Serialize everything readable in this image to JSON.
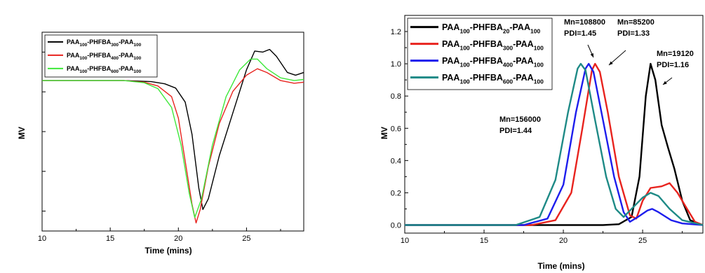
{
  "chart_data": [
    {
      "type": "line",
      "xlabel": "Time (mins)",
      "ylabel": "MV",
      "xlim": [
        10,
        29.2
      ],
      "xticks": [
        "10",
        "15",
        "20",
        "25"
      ],
      "y_tick_labels": "none",
      "legend_position": "top-left",
      "series": [
        {
          "name": "PAA100-PHFBA300-PAA100",
          "name_parts": [
            "PAA",
            "100",
            "-PHFBA",
            "300",
            "-PAA",
            "100"
          ],
          "color": "#000000",
          "points": [
            [
              10,
              0
            ],
            [
              16,
              0
            ],
            [
              18,
              -0.2
            ],
            [
              19,
              -0.6
            ],
            [
              19.8,
              -1.4
            ],
            [
              20.5,
              -4
            ],
            [
              21,
              -10
            ],
            [
              21.5,
              -20
            ],
            [
              21.8,
              -24
            ],
            [
              22.2,
              -22
            ],
            [
              23,
              -14
            ],
            [
              24,
              -6
            ],
            [
              25,
              2
            ],
            [
              25.6,
              5.5
            ],
            [
              26.2,
              5.3
            ],
            [
              26.7,
              5.8
            ],
            [
              27.2,
              4.5
            ],
            [
              28,
              1.5
            ],
            [
              28.6,
              1
            ],
            [
              29.2,
              1.5
            ]
          ]
        },
        {
          "name": "PAA100-PHFBA400-PAA100",
          "name_parts": [
            "PAA",
            "100",
            "-PHFBA",
            "400",
            "-PAA",
            "100"
          ],
          "color": "#e8231e",
          "points": [
            [
              10,
              0
            ],
            [
              16,
              0
            ],
            [
              17.5,
              -0.3
            ],
            [
              18.5,
              -1
            ],
            [
              19.5,
              -3
            ],
            [
              20,
              -7
            ],
            [
              20.5,
              -15
            ],
            [
              21,
              -23
            ],
            [
              21.3,
              -26.5
            ],
            [
              21.6,
              -24
            ],
            [
              22.2,
              -16
            ],
            [
              23,
              -8
            ],
            [
              24,
              -2
            ],
            [
              25,
              1
            ],
            [
              25.8,
              2.2
            ],
            [
              26.5,
              1.5
            ],
            [
              27.5,
              0
            ],
            [
              28.5,
              -0.5
            ],
            [
              29.2,
              -0.3
            ]
          ]
        },
        {
          "name": "PAA100-PHFBA600-PAA100",
          "name_parts": [
            "PAA",
            "100",
            "-PHFBA",
            "600",
            "-PAA",
            "100"
          ],
          "color": "#3ee83a",
          "points": [
            [
              10,
              0
            ],
            [
              16,
              0
            ],
            [
              17.5,
              -0.4
            ],
            [
              18.5,
              -1.5
            ],
            [
              19.5,
              -5
            ],
            [
              20.2,
              -12
            ],
            [
              20.8,
              -21
            ],
            [
              21.2,
              -25.5
            ],
            [
              21.7,
              -22
            ],
            [
              22.5,
              -12
            ],
            [
              23.5,
              -3
            ],
            [
              24.5,
              2
            ],
            [
              25.3,
              4
            ],
            [
              25.8,
              4
            ],
            [
              26.5,
              2.2
            ],
            [
              27.5,
              0.5
            ],
            [
              28.5,
              0
            ],
            [
              29.2,
              0.2
            ]
          ]
        }
      ]
    },
    {
      "type": "line",
      "xlabel": "Time (mins)",
      "ylabel": "MV",
      "xlim": [
        10,
        28.8
      ],
      "ylim": [
        -0.05,
        1.3
      ],
      "xticks": [
        "10",
        "15",
        "20",
        "25"
      ],
      "yticks": [
        "0.0",
        "0.2",
        "0.4",
        "0.6",
        "0.8",
        "1.0",
        "1.2"
      ],
      "legend_position": "top-left",
      "series": [
        {
          "name": "PAA100-PHFBA20-PAA100",
          "name_parts": [
            "PAA",
            "100",
            "-PHFBA",
            "20",
            "-PAA",
            "100"
          ],
          "color": "#000000",
          "points": [
            [
              10,
              0
            ],
            [
              22.5,
              0
            ],
            [
              23.5,
              0.005
            ],
            [
              24.3,
              0.05
            ],
            [
              24.8,
              0.3
            ],
            [
              25.2,
              0.8
            ],
            [
              25.5,
              1.0
            ],
            [
              25.8,
              0.9
            ],
            [
              26.2,
              0.62
            ],
            [
              26.6,
              0.48
            ],
            [
              27,
              0.35
            ],
            [
              27.5,
              0.15
            ],
            [
              28,
              0.03
            ],
            [
              28.8,
              0
            ]
          ]
        },
        {
          "name": "PAA100-PHFBA300-PAA100",
          "name_parts": [
            "PAA",
            "100",
            "-PHFBA",
            "300",
            "-PAA",
            "100"
          ],
          "color": "#e8231e",
          "points": [
            [
              10,
              0
            ],
            [
              18,
              0
            ],
            [
              19.5,
              0.03
            ],
            [
              20.5,
              0.2
            ],
            [
              21.2,
              0.6
            ],
            [
              21.8,
              0.96
            ],
            [
              22,
              1.0
            ],
            [
              22.3,
              0.95
            ],
            [
              22.8,
              0.7
            ],
            [
              23.5,
              0.3
            ],
            [
              24.2,
              0.06
            ],
            [
              24.6,
              0.04
            ],
            [
              25,
              0.15
            ],
            [
              25.5,
              0.23
            ],
            [
              26.2,
              0.24
            ],
            [
              26.7,
              0.26
            ],
            [
              27.2,
              0.2
            ],
            [
              27.8,
              0.1
            ],
            [
              28.3,
              0.02
            ],
            [
              28.8,
              0
            ]
          ]
        },
        {
          "name": "PAA100-PHFBA400-PAA100",
          "name_parts": [
            "PAA",
            "100",
            "-PHFBA",
            "400",
            "-PAA",
            "100"
          ],
          "color": "#1d1ded",
          "points": [
            [
              10,
              0
            ],
            [
              17.5,
              0
            ],
            [
              19,
              0.04
            ],
            [
              20,
              0.25
            ],
            [
              20.8,
              0.7
            ],
            [
              21.4,
              0.97
            ],
            [
              21.6,
              1.0
            ],
            [
              21.9,
              0.95
            ],
            [
              22.5,
              0.65
            ],
            [
              23.2,
              0.3
            ],
            [
              23.8,
              0.08
            ],
            [
              24.2,
              0.02
            ],
            [
              24.7,
              0.05
            ],
            [
              25.3,
              0.09
            ],
            [
              25.6,
              0.1
            ],
            [
              26,
              0.08
            ],
            [
              26.8,
              0.03
            ],
            [
              27.5,
              0.01
            ],
            [
              28.8,
              0
            ]
          ]
        },
        {
          "name": "PAA100-PHFBA600-PAA100",
          "name_parts": [
            "PAA",
            "100",
            "-PHFBA",
            "600",
            "-PAA",
            "100"
          ],
          "color": "#1e8a86",
          "points": [
            [
              10,
              0
            ],
            [
              17,
              0
            ],
            [
              18.5,
              0.05
            ],
            [
              19.5,
              0.28
            ],
            [
              20.3,
              0.7
            ],
            [
              20.9,
              0.97
            ],
            [
              21.1,
              1.0
            ],
            [
              21.4,
              0.96
            ],
            [
              22,
              0.65
            ],
            [
              22.7,
              0.3
            ],
            [
              23.3,
              0.1
            ],
            [
              23.8,
              0.05
            ],
            [
              24.3,
              0.1
            ],
            [
              25,
              0.17
            ],
            [
              25.5,
              0.2
            ],
            [
              26,
              0.18
            ],
            [
              26.7,
              0.1
            ],
            [
              27.5,
              0.03
            ],
            [
              28.8,
              0
            ]
          ]
        }
      ],
      "annotations": [
        {
          "lines": [
            "Mn=156000",
            "PDI=1.44"
          ]
        },
        {
          "lines": [
            "Mn=108800",
            "PDI=1.45"
          ]
        },
        {
          "lines": [
            "Mn=85200",
            "PDI=1.33"
          ]
        },
        {
          "lines": [
            "Mn=19120",
            "PDI=1.16"
          ]
        }
      ]
    }
  ]
}
